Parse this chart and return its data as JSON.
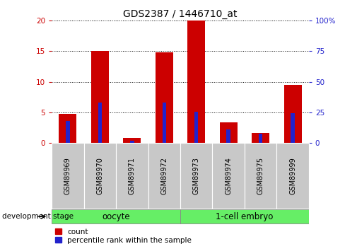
{
  "title": "GDS2387 / 1446710_at",
  "samples": [
    "GSM89969",
    "GSM89970",
    "GSM89971",
    "GSM89972",
    "GSM89973",
    "GSM89974",
    "GSM89975",
    "GSM89999"
  ],
  "count_values": [
    4.7,
    15.0,
    0.8,
    14.8,
    20.0,
    3.3,
    1.6,
    9.5
  ],
  "percentile_values": [
    18.0,
    33.0,
    1.5,
    33.0,
    25.5,
    11.0,
    7.5,
    24.5
  ],
  "groups": [
    {
      "name": "oocyte",
      "indices": [
        0,
        1,
        2,
        3
      ],
      "color": "#66EE66"
    },
    {
      "name": "1-cell embryo",
      "indices": [
        4,
        5,
        6,
        7
      ],
      "color": "#66EE66"
    }
  ],
  "left_ylim": [
    0,
    20
  ],
  "right_ylim": [
    0,
    100
  ],
  "left_yticks": [
    0,
    5,
    10,
    15,
    20
  ],
  "right_yticks": [
    0,
    25,
    50,
    75,
    100
  ],
  "bar_color_red": "#CC0000",
  "bar_color_blue": "#2222CC",
  "red_bar_width": 0.55,
  "blue_bar_width": 0.12,
  "left_tick_color": "#CC0000",
  "right_tick_color": "#2222CC",
  "tick_label_fontsize": 7.5,
  "title_fontsize": 10
}
